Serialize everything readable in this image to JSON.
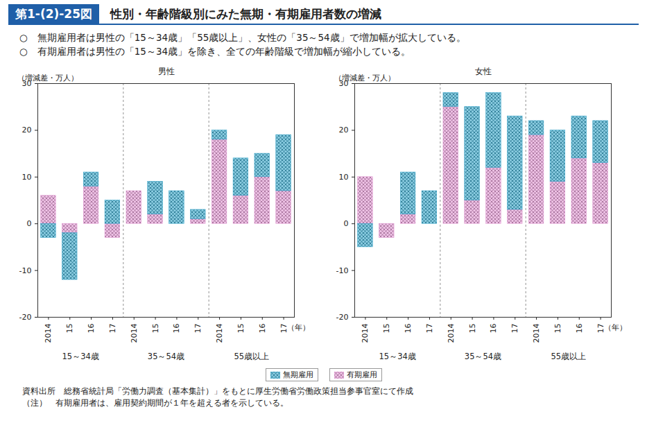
{
  "header": {
    "figure": "第1-(2)-25図",
    "title": "性別・年齢階級別にみた無期・有期雇用者数の増減"
  },
  "bullets": [
    "○　無期雇用者は男性の「15～34歳」「55歳以上」、女性の「35～54歳」で増加幅が拡大している。",
    "○　有期雇用者は男性の「15～34歳」を除き、全ての年齢階級で増加幅が縮小している。"
  ],
  "legend": "bottom",
  "notes": [
    "資料出所　総務省統計局「労働力調査（基本集計）」をもとに厚生労働省労働政策担当参事官室にて作成",
    "（注）　有期雇用者は、雇用契約期間が１年を超える者を示している。"
  ],
  "chart_data": [
    {
      "type": "bar",
      "stacked": true,
      "title": "男性",
      "y_label": "（増減差・万人）",
      "x_label": "（年）",
      "categories": [
        "2014",
        "15",
        "16",
        "17",
        "2014",
        "15",
        "16",
        "17",
        "2014",
        "15",
        "16",
        "17"
      ],
      "groups": [
        "15～34歳",
        "35～54歳",
        "55歳以上"
      ],
      "series": [
        {
          "name": "無期雇用",
          "color": "#3aa8cc",
          "values": [
            -3,
            -10,
            3,
            5,
            0,
            7,
            7,
            2,
            2,
            8,
            5,
            12
          ]
        },
        {
          "name": "有期雇用",
          "color": "#e39ad4",
          "values": [
            6,
            -2,
            8,
            -3,
            7,
            2,
            0,
            1,
            18,
            6,
            10,
            7
          ]
        }
      ],
      "ylim": [
        -20,
        30
      ],
      "yticks": [
        -20,
        -10,
        0,
        10,
        20,
        30
      ]
    },
    {
      "type": "bar",
      "stacked": true,
      "title": "女性",
      "y_label": "（増減差・万人）",
      "x_label": "（年）",
      "categories": [
        "2014",
        "15",
        "16",
        "17",
        "2014",
        "15",
        "16",
        "17",
        "2014",
        "15",
        "16",
        "17"
      ],
      "groups": [
        "15～34歳",
        "35～54歳",
        "55歳以上"
      ],
      "series": [
        {
          "name": "無期雇用",
          "color": "#3aa8cc",
          "values": [
            -5,
            0,
            9,
            7,
            3,
            20,
            16,
            20,
            3,
            11,
            9,
            9
          ]
        },
        {
          "name": "有期雇用",
          "color": "#e39ad4",
          "values": [
            10,
            -3,
            2,
            0,
            25,
            5,
            12,
            3,
            19,
            9,
            14,
            13
          ]
        }
      ],
      "ylim": [
        -20,
        30
      ],
      "yticks": [
        -20,
        -10,
        0,
        10,
        20,
        30
      ]
    }
  ]
}
